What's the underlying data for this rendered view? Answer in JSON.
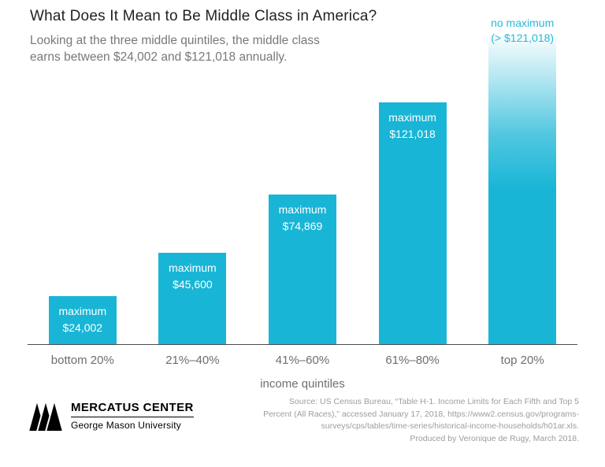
{
  "header": {
    "title": "What Does It Mean to Be Middle Class in America?",
    "subtitle": "Looking at the three middle quintiles, the middle class earns between $24,002 and $121,018 annually."
  },
  "chart_data": {
    "type": "bar",
    "title": "What Does It Mean to Be Middle Class in America?",
    "subtitle": "Looking at the three middle quintiles, the middle class earns between $24,002 and $121,018 annually.",
    "categories": [
      "bottom 20%",
      "21%–40%",
      "41%–60%",
      "61%–80%",
      "top 20%"
    ],
    "values": [
      24002,
      45600,
      74869,
      121018,
      null
    ],
    "bar_labels": [
      {
        "line1": "maximum",
        "line2": "$24,002"
      },
      {
        "line1": "maximum",
        "line2": "$45,600"
      },
      {
        "line1": "maximum",
        "line2": "$74,869"
      },
      {
        "line1": "maximum",
        "line2": "$121,018"
      },
      {
        "line1": "no maximum",
        "line2": "(> $121,018)"
      }
    ],
    "top_bar_note": "no maximum (> $121,018), rendered as full-height bar fading to white at top",
    "xlabel": "income quintiles",
    "ylabel": "",
    "ylim": [
      0,
      121018
    ],
    "grid": false,
    "legend": false,
    "bar_color": "#19b5d6",
    "label_color_inside": "#ffffff",
    "label_color_above": "#2ab8d8"
  },
  "footer": {
    "logo_title": "MERCATUS CENTER",
    "logo_subtitle": "George Mason University",
    "source_lines": [
      "Source: US Census Bureau, “Table H-1. Income Limits for Each Fifth and Top 5",
      "Percent (All Races),” accessed January 17, 2018, https://www2.census.gov/programs-",
      "surveys/cps/tables/time-series/historical-income-households/h01ar.xls.",
      "Produced by Veronique de Rugy, March 2018."
    ]
  }
}
